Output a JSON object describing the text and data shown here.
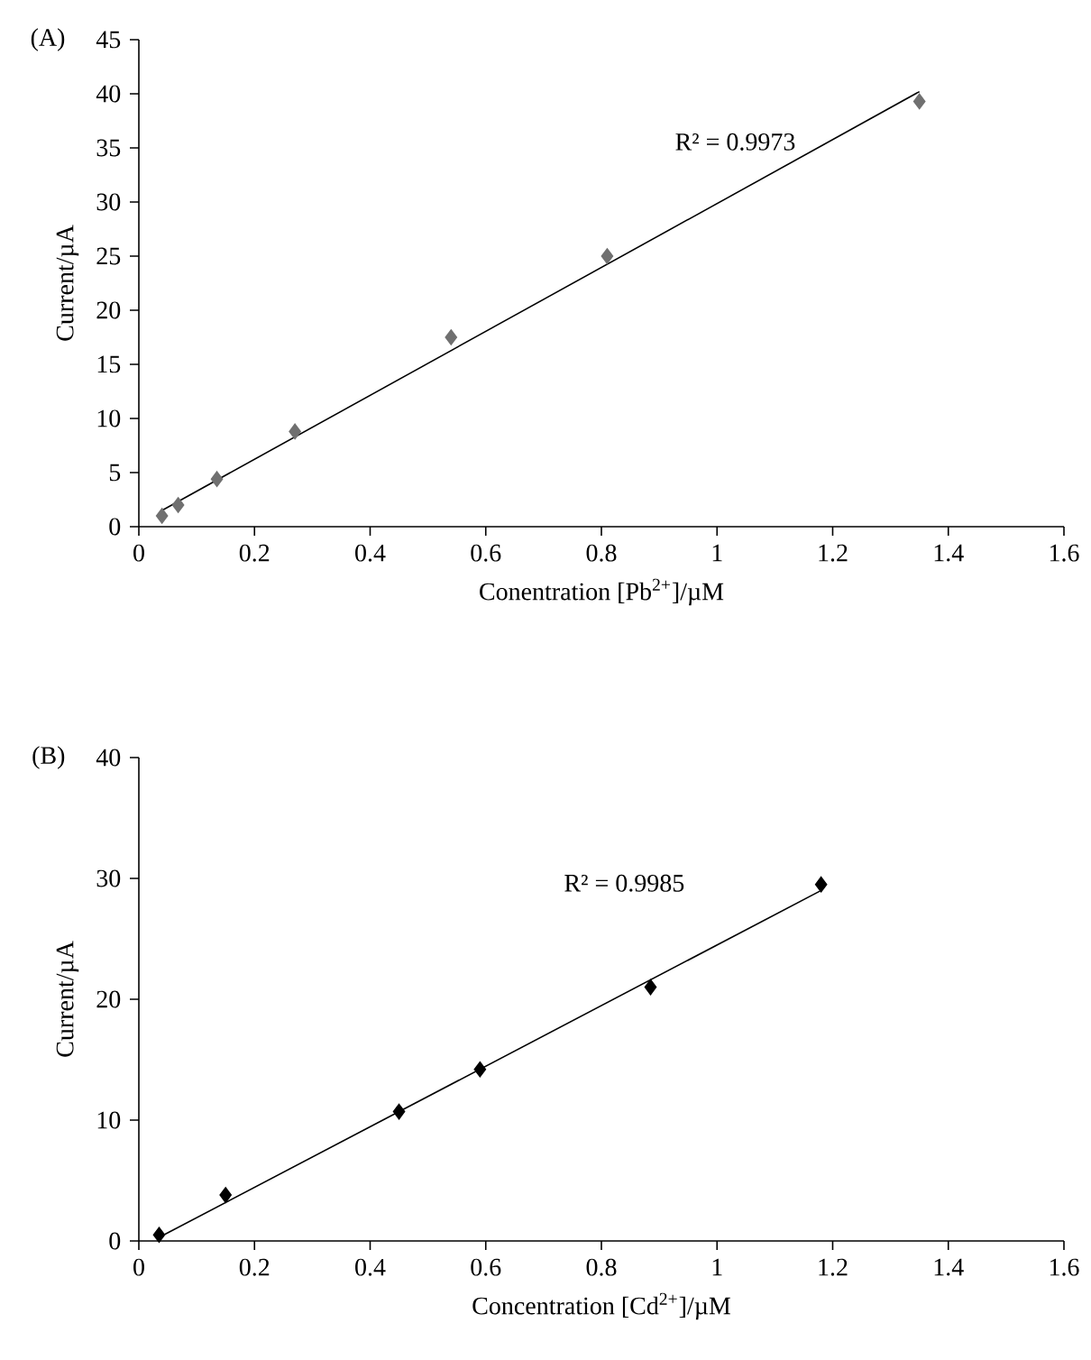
{
  "chart_data": [
    {
      "type": "scatter",
      "title": "(A)",
      "xlabel": "Conentration [Pb$^{2+}$]/µM",
      "ylabel": "Current/µA",
      "xlim": [
        0,
        1.6
      ],
      "xticks": [
        0,
        0.2,
        0.4,
        0.6,
        0.8,
        1,
        1.2,
        1.4,
        1.6
      ],
      "ylim": [
        0,
        45
      ],
      "yticks": [
        0,
        5,
        10,
        15,
        20,
        25,
        30,
        35,
        40,
        45
      ],
      "annotations": [
        "R² = 0.9973"
      ],
      "marker": "diamond",
      "series": [
        {
          "color": "#707070",
          "x": [
            0.04,
            0.068,
            0.135,
            0.27,
            0.54,
            0.81,
            1.35
          ],
          "values": [
            1,
            2,
            4.4,
            8.8,
            17.5,
            25,
            39.3
          ]
        },
        {
          "type": "line",
          "color": "#000000",
          "marker": "none",
          "x": [
            0.04,
            1.35
          ],
          "values": [
            1.5,
            40.2
          ]
        }
      ]
    },
    {
      "type": "scatter",
      "title": "(B)",
      "xlabel": "Concentration [Cd$^{2+}$]/µM",
      "ylabel": "Current/µA",
      "xlim": [
        0,
        1.6
      ],
      "xticks": [
        0,
        0.2,
        0.4,
        0.6,
        0.8,
        1,
        1.2,
        1.4,
        1.6
      ],
      "ylim": [
        0,
        40
      ],
      "yticks": [
        0,
        10,
        20,
        30,
        40
      ],
      "annotations": [
        "R² = 0.9985"
      ],
      "marker": "diamond",
      "series": [
        {
          "color": "#000000",
          "x": [
            0.035,
            0.15,
            0.45,
            0.59,
            0.885,
            1.18
          ],
          "values": [
            0.5,
            3.8,
            10.7,
            14.2,
            21,
            29.5
          ]
        },
        {
          "type": "line",
          "color": "#000000",
          "marker": "none",
          "x": [
            0.035,
            1.18
          ],
          "values": [
            0.3,
            29
          ]
        }
      ]
    }
  ]
}
